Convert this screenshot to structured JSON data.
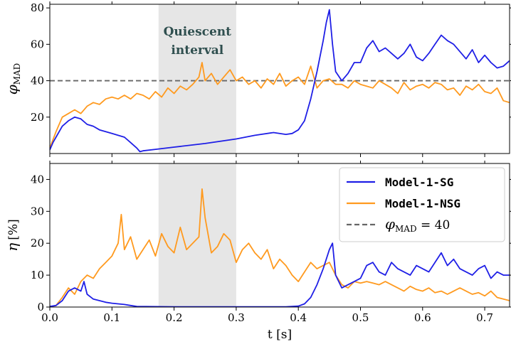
{
  "chart_data": {
    "type": "line",
    "shared_x": {
      "label": "t [s]",
      "ticks": [
        "0.0",
        "0.1",
        "0.2",
        "0.3",
        "0.4",
        "0.5",
        "0.6",
        "0.7"
      ],
      "tick_values": [
        0.0,
        0.1,
        0.2,
        0.3,
        0.4,
        0.5,
        0.6,
        0.7
      ],
      "xlim": [
        0.0,
        0.74
      ]
    },
    "shaded_interval": {
      "x": [
        0.175,
        0.3
      ],
      "label": "Quiescent interval",
      "label_lines": [
        "Quiescent",
        "interval"
      ]
    },
    "legend": {
      "position": "top-right of lower panel",
      "entries": [
        {
          "label": "Model-1-SG",
          "color": "#1f1fe6",
          "style": "solid"
        },
        {
          "label": "Model-1-NSG",
          "color": "#ff9a1f",
          "style": "solid"
        },
        {
          "label": "φ_MAD = 40",
          "label_main": "φ",
          "label_sub": "MAD",
          "label_rest": " = 40",
          "color": "#666666",
          "style": "dashed"
        }
      ]
    },
    "panels": [
      {
        "id": "top",
        "ylabel": "φ_MAD",
        "ylabel_main": "φ",
        "ylabel_sub": "MAD",
        "ylim": [
          0,
          82
        ],
        "yticks": [
          "20",
          "40",
          "60",
          "80"
        ],
        "ytick_values": [
          20,
          40,
          60,
          80
        ],
        "hline": 40,
        "series": [
          {
            "name": "Model-1-SG",
            "color": "#1f1fe6",
            "x": [
              0.0,
              0.005,
              0.01,
              0.02,
              0.03,
              0.04,
              0.05,
              0.06,
              0.07,
              0.08,
              0.09,
              0.1,
              0.11,
              0.12,
              0.13,
              0.14,
              0.145,
              0.15,
              0.175,
              0.2,
              0.25,
              0.3,
              0.33,
              0.36,
              0.38,
              0.39,
              0.4,
              0.41,
              0.42,
              0.43,
              0.44,
              0.445,
              0.45,
              0.455,
              0.46,
              0.47,
              0.48,
              0.49,
              0.5,
              0.51,
              0.52,
              0.53,
              0.54,
              0.55,
              0.56,
              0.57,
              0.58,
              0.59,
              0.6,
              0.61,
              0.62,
              0.63,
              0.64,
              0.65,
              0.66,
              0.67,
              0.68,
              0.69,
              0.7,
              0.71,
              0.72,
              0.73,
              0.74
            ],
            "y": [
              2,
              6,
              9,
              15,
              18,
              20,
              19,
              16,
              15,
              13,
              12,
              11,
              10,
              9,
              6,
              3,
              1,
              1.5,
              2.5,
              3.5,
              5.5,
              8,
              10,
              11.5,
              10.5,
              11,
              13,
              18,
              30,
              45,
              62,
              72,
              79,
              60,
              45,
              40,
              44,
              50,
              50,
              58,
              62,
              56,
              58,
              55,
              52,
              55,
              60,
              53,
              51,
              55,
              60,
              65,
              62,
              60,
              56,
              52,
              57,
              50,
              54,
              50,
              47,
              48,
              51
            ]
          },
          {
            "name": "Model-1-NSG",
            "color": "#ff9a1f",
            "x": [
              0.0,
              0.01,
              0.02,
              0.03,
              0.04,
              0.05,
              0.06,
              0.07,
              0.08,
              0.09,
              0.1,
              0.11,
              0.12,
              0.13,
              0.14,
              0.15,
              0.16,
              0.17,
              0.18,
              0.19,
              0.2,
              0.21,
              0.22,
              0.23,
              0.24,
              0.245,
              0.25,
              0.26,
              0.27,
              0.28,
              0.29,
              0.3,
              0.31,
              0.32,
              0.33,
              0.34,
              0.35,
              0.36,
              0.37,
              0.38,
              0.39,
              0.4,
              0.41,
              0.42,
              0.43,
              0.44,
              0.45,
              0.46,
              0.47,
              0.48,
              0.49,
              0.5,
              0.51,
              0.52,
              0.53,
              0.54,
              0.55,
              0.56,
              0.57,
              0.58,
              0.59,
              0.6,
              0.61,
              0.62,
              0.63,
              0.64,
              0.65,
              0.66,
              0.67,
              0.68,
              0.69,
              0.7,
              0.71,
              0.72,
              0.73,
              0.74
            ],
            "y": [
              3,
              12,
              20,
              22,
              24,
              22,
              26,
              28,
              27,
              30,
              31,
              30,
              32,
              30,
              33,
              32,
              30,
              34,
              31,
              36,
              33,
              37,
              35,
              38,
              42,
              50,
              40,
              44,
              38,
              42,
              46,
              40,
              42,
              38,
              40,
              36,
              41,
              38,
              44,
              37,
              40,
              42,
              38,
              48,
              36,
              40,
              41,
              38,
              38,
              36,
              40,
              38,
              37,
              36,
              40,
              38,
              36,
              33,
              39,
              35,
              37,
              38,
              36,
              39,
              38,
              35,
              36,
              32,
              37,
              35,
              38,
              34,
              33,
              36,
              29,
              28
            ]
          }
        ]
      },
      {
        "id": "bottom",
        "ylabel": "η [%]",
        "ylabel_main": "η",
        "ylabel_rest": "[%]",
        "ylim": [
          0,
          45
        ],
        "yticks": [
          "0",
          "10",
          "20",
          "30",
          "40"
        ],
        "ytick_values": [
          0,
          10,
          20,
          30,
          40
        ],
        "series": [
          {
            "name": "Model-1-SG",
            "color": "#1f1fe6",
            "x": [
              0.0,
              0.01,
              0.02,
              0.03,
              0.04,
              0.05,
              0.055,
              0.06,
              0.07,
              0.08,
              0.09,
              0.1,
              0.11,
              0.12,
              0.13,
              0.14,
              0.2,
              0.3,
              0.35,
              0.38,
              0.4,
              0.41,
              0.42,
              0.43,
              0.44,
              0.45,
              0.455,
              0.46,
              0.47,
              0.48,
              0.49,
              0.5,
              0.51,
              0.52,
              0.53,
              0.54,
              0.55,
              0.56,
              0.57,
              0.58,
              0.59,
              0.6,
              0.61,
              0.62,
              0.63,
              0.64,
              0.65,
              0.66,
              0.67,
              0.68,
              0.69,
              0.7,
              0.71,
              0.72,
              0.73,
              0.74
            ],
            "y": [
              0.2,
              0.5,
              2,
              5,
              6,
              5,
              8,
              4,
              2.5,
              2,
              1.5,
              1.2,
              1,
              0.8,
              0.5,
              0.2,
              0.1,
              0.1,
              0.1,
              0.1,
              0.3,
              1,
              3,
              7,
              12,
              18,
              20,
              10,
              6,
              7,
              8,
              9,
              13,
              14,
              11,
              10,
              14,
              12,
              11,
              10,
              13,
              12,
              11,
              14,
              17,
              13,
              15,
              12,
              11,
              10,
              12,
              13,
              9,
              11,
              10,
              10
            ]
          },
          {
            "name": "Model-1-NSG",
            "color": "#ff9a1f",
            "x": [
              0.0,
              0.01,
              0.02,
              0.03,
              0.04,
              0.05,
              0.06,
              0.07,
              0.08,
              0.09,
              0.1,
              0.11,
              0.115,
              0.12,
              0.13,
              0.14,
              0.15,
              0.16,
              0.17,
              0.18,
              0.19,
              0.2,
              0.21,
              0.22,
              0.23,
              0.24,
              0.245,
              0.25,
              0.26,
              0.27,
              0.28,
              0.29,
              0.3,
              0.31,
              0.32,
              0.33,
              0.34,
              0.35,
              0.36,
              0.37,
              0.38,
              0.39,
              0.4,
              0.41,
              0.42,
              0.43,
              0.44,
              0.45,
              0.46,
              0.47,
              0.48,
              0.49,
              0.5,
              0.51,
              0.52,
              0.53,
              0.54,
              0.55,
              0.56,
              0.57,
              0.58,
              0.59,
              0.6,
              0.61,
              0.62,
              0.63,
              0.64,
              0.65,
              0.66,
              0.67,
              0.68,
              0.69,
              0.7,
              0.71,
              0.72,
              0.73,
              0.74
            ],
            "y": [
              0,
              0.5,
              3,
              6,
              4,
              8,
              10,
              9,
              12,
              14,
              16,
              20,
              29,
              18,
              22,
              15,
              18,
              21,
              16,
              23,
              19,
              17,
              25,
              18,
              20,
              22,
              37,
              28,
              17,
              19,
              23,
              21,
              14,
              18,
              20,
              17,
              15,
              18,
              12,
              15,
              13,
              10,
              8,
              11,
              14,
              12,
              13,
              14,
              10,
              7,
              6,
              8,
              7.5,
              8,
              7.5,
              7,
              8,
              7,
              6,
              5,
              6.5,
              5.5,
              5,
              6,
              4.5,
              5,
              4,
              5,
              6,
              5,
              4,
              4.5,
              3.5,
              5,
              3,
              2.5,
              2
            ]
          }
        ]
      }
    ]
  }
}
